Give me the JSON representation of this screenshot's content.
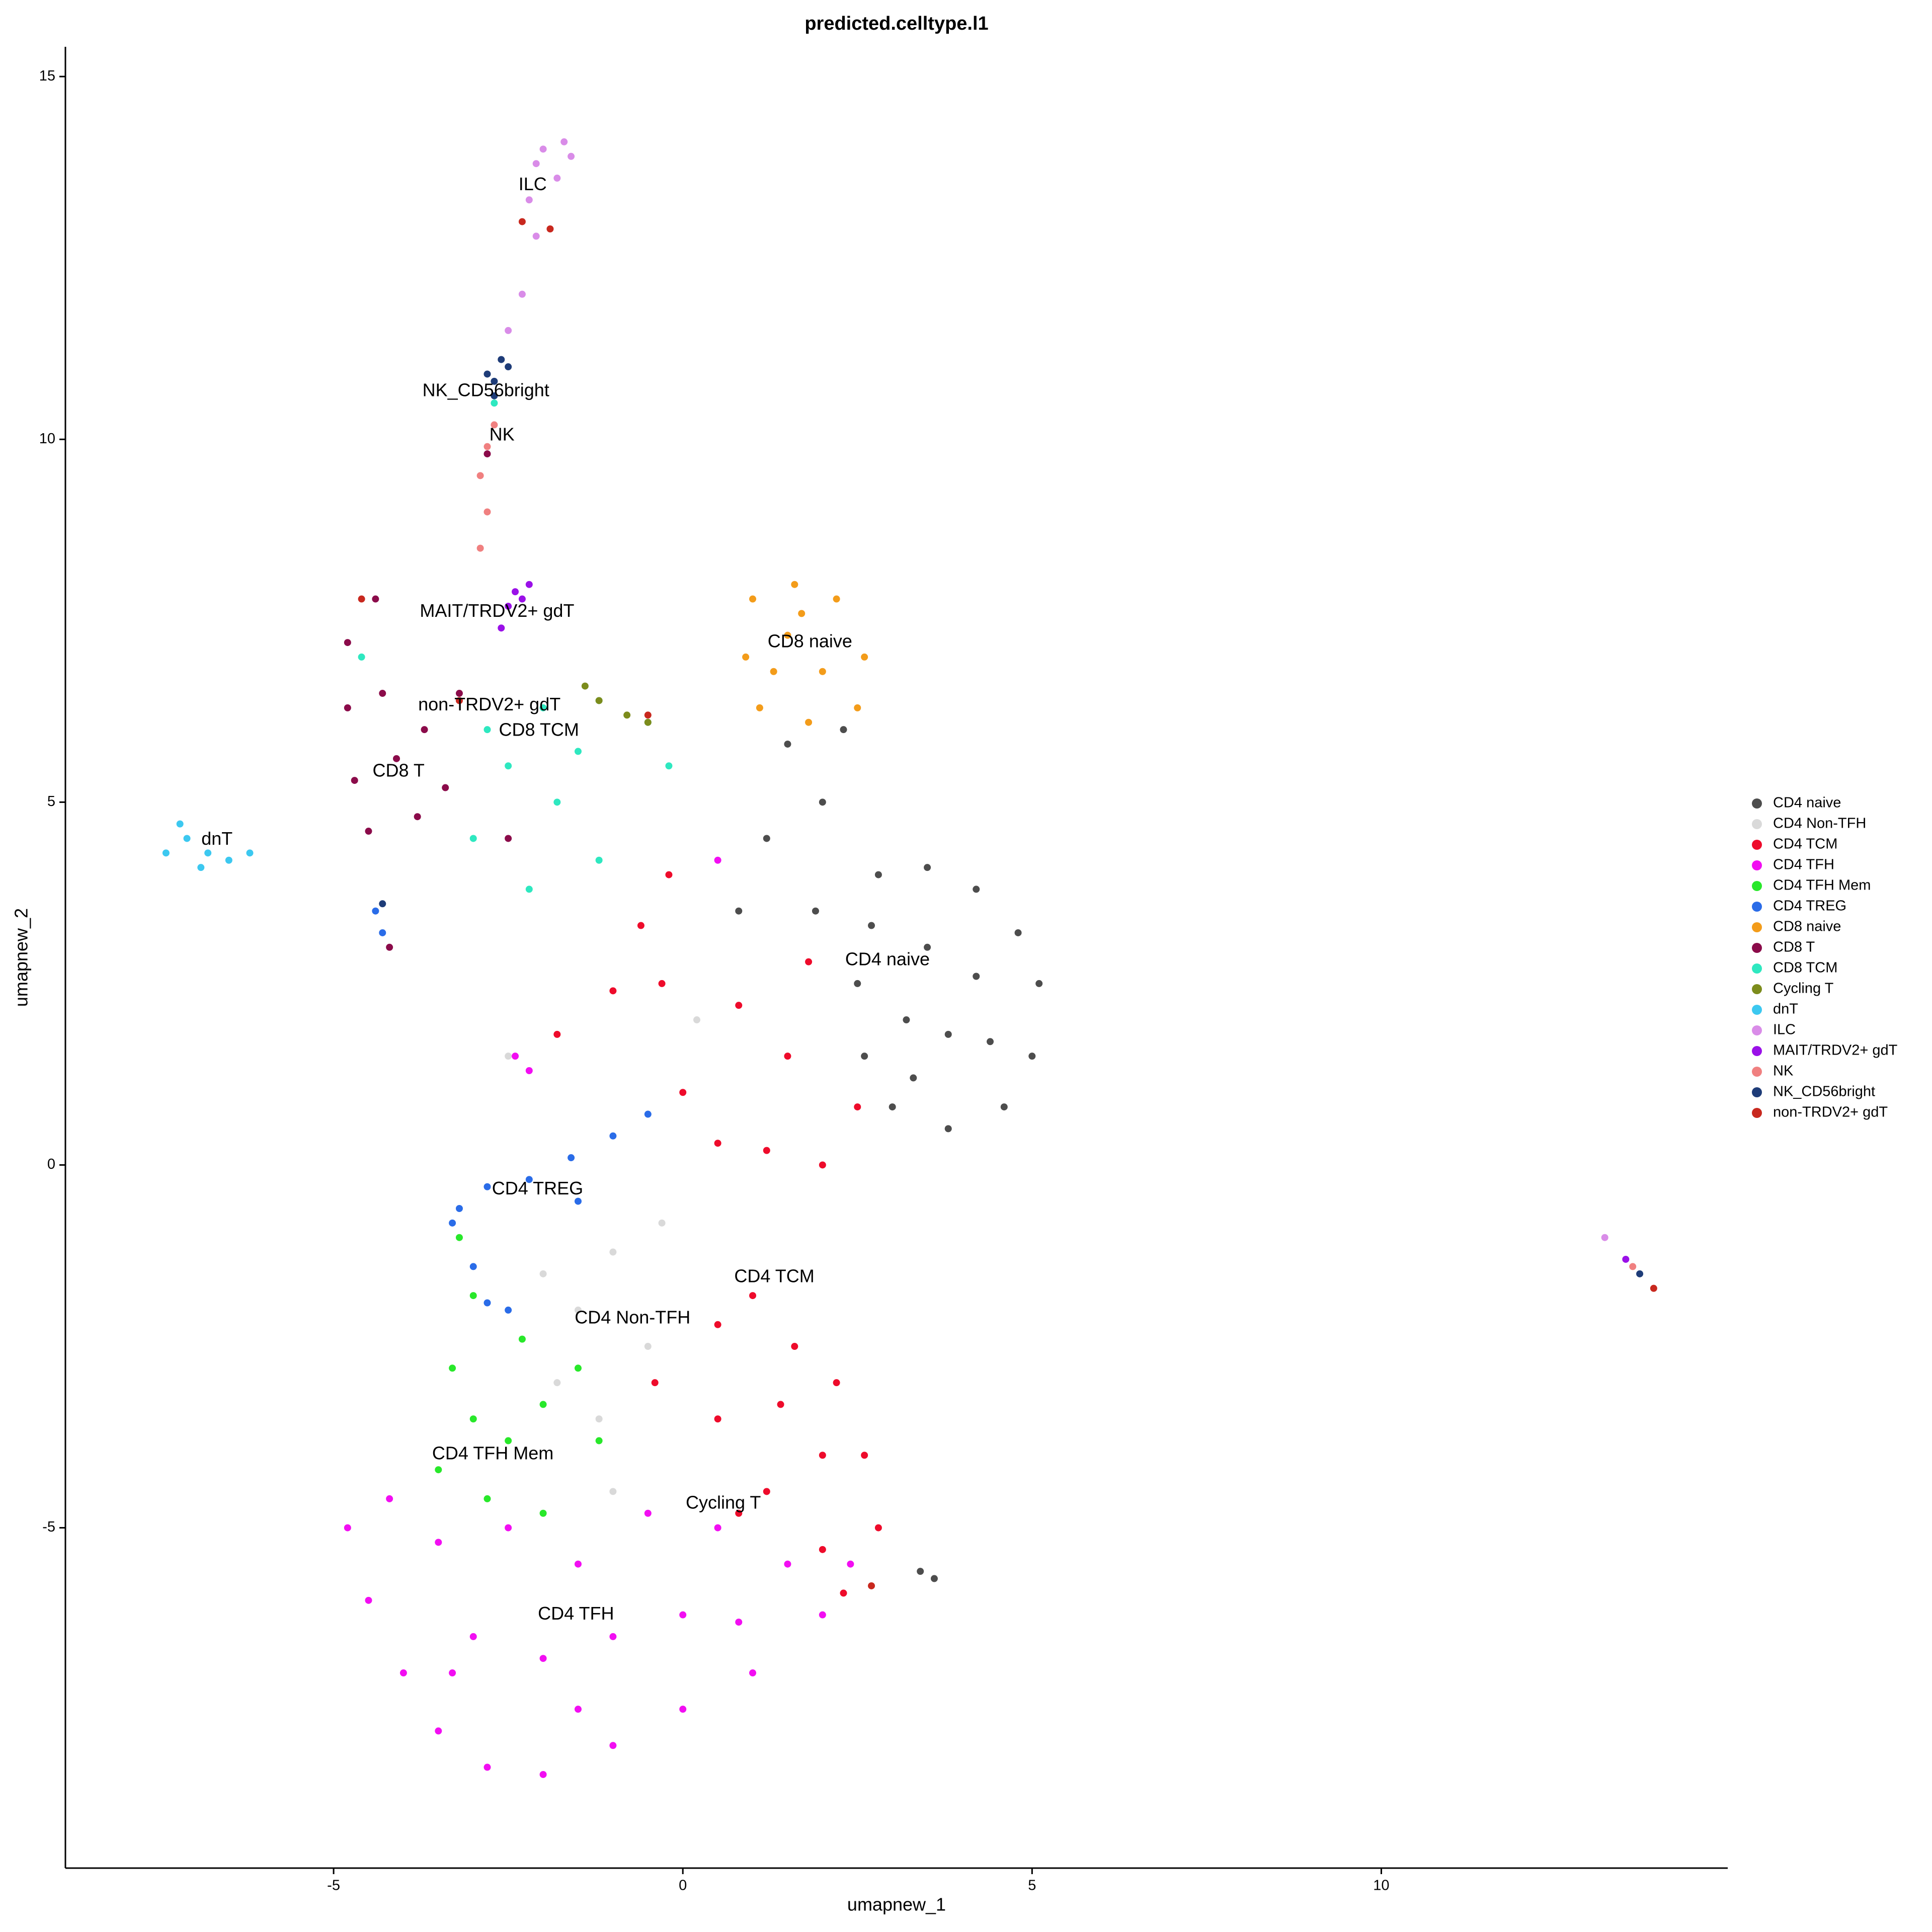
{
  "chart_data": {
    "type": "scatter",
    "title": "predicted.celltype.l1",
    "xlabel": "umapnew_1",
    "ylabel": "umapnew_2",
    "xlim": [
      -8.84,
      14.96
    ],
    "ylim": [
      -9.69,
      15.41
    ],
    "xticks": [
      -5,
      0,
      5,
      10
    ],
    "yticks": [
      -5,
      0,
      5,
      10,
      15
    ],
    "grid": false,
    "legend": "right",
    "series": [
      {
        "name": "CD4 naive",
        "color": "#4d4d4d",
        "x": [
          2.8,
          3.5,
          4.2,
          4.8,
          5.1,
          5,
          4.6,
          3.8,
          3,
          2.6,
          2.5,
          2.7,
          3.5,
          4.2,
          3.8,
          4.4,
          3.2,
          3.3,
          2,
          1.5,
          2.3,
          1.2,
          1.9,
          0.8,
          3.4,
          3.6
        ],
        "y": [
          4,
          4.1,
          3.8,
          3.2,
          2.5,
          1.5,
          0.8,
          0.5,
          0.8,
          1.5,
          2.5,
          3.3,
          3,
          2.6,
          1.8,
          1.7,
          2,
          1.2,
          5,
          5.8,
          6,
          4.5,
          3.5,
          3.5,
          -5.6,
          -5.7
        ]
      },
      {
        "name": "CD4 Non-TFH",
        "color": "#d9d9d9",
        "x": [
          -2,
          -1.5,
          -1,
          -0.5,
          -1.8,
          -1.2,
          -0.3,
          -2.5,
          0.2,
          -1
        ],
        "y": [
          -1.5,
          -2,
          -1.2,
          -2.5,
          -3,
          -3.5,
          -0.8,
          1.5,
          2,
          -4.5
        ]
      },
      {
        "name": "CD4 TCM",
        "color": "#ee0b2b",
        "x": [
          0.5,
          1,
          1.6,
          2.2,
          2.6,
          2.8,
          2,
          1.2,
          0.5,
          -0.4,
          1.4,
          2,
          0.8,
          0.5,
          1.2,
          2,
          2.5,
          1.5,
          0.8,
          -0.3,
          -1,
          -1.8,
          -0.6,
          0,
          -0.2,
          1.8,
          2.3
        ],
        "y": [
          -2.2,
          -1.8,
          -2.5,
          -3,
          -4,
          -5,
          -5.3,
          -4.5,
          -3.5,
          -3,
          -3.3,
          -4,
          -4.8,
          0.3,
          0.2,
          0,
          0.8,
          1.5,
          2.2,
          2.5,
          2.4,
          1.8,
          3.3,
          1,
          4,
          2.8,
          -5.9
        ]
      },
      {
        "name": "CD4 TFH",
        "color": "#f20ef2",
        "x": [
          -4.8,
          -4.5,
          -4,
          -3.5,
          -2.8,
          -2,
          -1,
          0,
          1,
          2,
          2.4,
          1.5,
          0.5,
          -0.5,
          -1.5,
          -2.5,
          -3.5,
          -4.2,
          -3,
          -2,
          -1,
          0,
          -1.5,
          -3.3,
          0.8,
          -2.2,
          -2.4,
          0.5
        ],
        "y": [
          -5,
          -6,
          -7,
          -7.8,
          -8.3,
          -8.4,
          -8,
          -7.5,
          -7,
          -6.2,
          -5.5,
          -5.5,
          -5,
          -4.8,
          -5.5,
          -5,
          -5.2,
          -4.6,
          -6.5,
          -6.8,
          -6.5,
          -6.2,
          -7.5,
          -7,
          -6.3,
          1.3,
          1.5,
          4.2
        ]
      },
      {
        "name": "CD4 TFH Mem",
        "color": "#28e82a",
        "x": [
          -3.2,
          -3,
          -3.3,
          -3,
          -2.5,
          -2,
          -1.5,
          -3.5,
          -2.8,
          -2,
          -2.3,
          -1.2
        ],
        "y": [
          -1,
          -1.8,
          -2.8,
          -3.5,
          -3.8,
          -3.3,
          -2.8,
          -4.2,
          -4.6,
          -4.8,
          -2.4,
          -3.8
        ]
      },
      {
        "name": "CD4 TREG",
        "color": "#2a6ce8",
        "x": [
          -2.8,
          -2.2,
          -1.6,
          -1,
          -0.5,
          -3.3,
          -3,
          -2.8,
          -2.5,
          -3.2,
          -1.5,
          -4.4,
          -4.3
        ],
        "y": [
          -0.3,
          -0.2,
          0.1,
          0.4,
          0.7,
          -0.8,
          -1.4,
          -1.9,
          -2,
          -0.6,
          -0.5,
          3.5,
          3.2
        ]
      },
      {
        "name": "CD8 naive",
        "color": "#f39c1a",
        "x": [
          1,
          1.6,
          2.2,
          2.6,
          2.5,
          1.8,
          1.1,
          0.9,
          1.5,
          2,
          1.7,
          1.3
        ],
        "y": [
          7.8,
          8,
          7.8,
          7,
          6.3,
          6.1,
          6.3,
          7,
          7.3,
          6.8,
          7.6,
          6.8
        ]
      },
      {
        "name": "CD8 T",
        "color": "#8b0b4a",
        "x": [
          -4.8,
          -4.3,
          -3.7,
          -3.4,
          -3.8,
          -4.5,
          -4.7,
          -4.1,
          -4.4,
          -4.8,
          -3.2,
          -2.5,
          -4.2,
          -2.8
        ],
        "y": [
          6.3,
          6.5,
          6,
          5.2,
          4.8,
          4.6,
          5.3,
          5.6,
          7.8,
          7.2,
          6.5,
          4.5,
          3,
          9.8
        ]
      },
      {
        "name": "CD8 TCM",
        "color": "#2ee8c0",
        "x": [
          -2.8,
          -2,
          -1.2,
          -0.5,
          -2.5,
          -1.8,
          -1.2,
          -3,
          -2.2,
          -1.5,
          -0.2,
          -4.6,
          -2.7
        ],
        "y": [
          6,
          6.3,
          6.4,
          6.1,
          5.5,
          5,
          4.2,
          4.5,
          3.8,
          5.7,
          5.5,
          7,
          10.5
        ]
      },
      {
        "name": "Cycling T",
        "color": "#7c8c1c",
        "x": [
          -1.2,
          -0.8,
          -0.5,
          -1.4
        ],
        "y": [
          6.4,
          6.2,
          6.1,
          6.6
        ]
      },
      {
        "name": "dnT",
        "color": "#3cc8f0",
        "x": [
          -7.4,
          -7.1,
          -6.8,
          -6.5,
          -6.2,
          -7.2,
          -6.9
        ],
        "y": [
          4.3,
          4.5,
          4.3,
          4.2,
          4.3,
          4.7,
          4.1
        ]
      },
      {
        "name": "ILC",
        "color": "#d98ce8",
        "x": [
          -2,
          -1.7,
          -2.1,
          -1.8,
          -2.2,
          -2.1,
          -2.3,
          -2.5,
          13.2,
          -1.6
        ],
        "y": [
          14,
          14.1,
          13.8,
          13.6,
          13.3,
          12.8,
          12,
          11.5,
          -1,
          13.9
        ]
      },
      {
        "name": "MAIT/TRDV2+ gdT",
        "color": "#9a10e8",
        "x": [
          -2.4,
          -2.5,
          -2.3,
          -2.6,
          -2.2,
          13.5
        ],
        "y": [
          7.9,
          7.7,
          7.8,
          7.4,
          8,
          -1.3
        ]
      },
      {
        "name": "NK",
        "color": "#f08080",
        "x": [
          -2.8,
          -2.9,
          -2.8,
          -2.9,
          -2.7,
          13.6
        ],
        "y": [
          9.9,
          9.5,
          9,
          8.5,
          10.2,
          -1.4
        ]
      },
      {
        "name": "NK_CD56bright",
        "color": "#1e3c78",
        "x": [
          -2.6,
          -2.7,
          -2.5,
          -2.8,
          -4.3,
          -2.7,
          13.7
        ],
        "y": [
          11.1,
          10.8,
          11,
          10.9,
          3.6,
          10.6,
          -1.5
        ]
      },
      {
        "name": "non-TRDV2+ gdT",
        "color": "#c8281e",
        "x": [
          -0.5,
          -3.2,
          -2.3,
          -1.9,
          13.9,
          2.7,
          -4.6
        ],
        "y": [
          6.2,
          6.4,
          13,
          12.9,
          -1.7,
          -5.8,
          7.8
        ]
      }
    ],
    "labels": [
      {
        "text": "ILC",
        "x": -2.15,
        "y": 13.5
      },
      {
        "text": "NK_CD56bright",
        "x": -2.82,
        "y": 10.66
      },
      {
        "text": "NK",
        "x": -2.59,
        "y": 10.05
      },
      {
        "text": "MAIT/TRDV2+ gdT",
        "x": -2.66,
        "y": 7.62
      },
      {
        "text": "CD8 naive",
        "x": 1.82,
        "y": 7.2
      },
      {
        "text": "non-TRDV2+ gdT",
        "x": -2.77,
        "y": 6.33
      },
      {
        "text": "CD8 TCM",
        "x": -2.06,
        "y": 5.98
      },
      {
        "text": "CD8 T",
        "x": -4.07,
        "y": 5.42
      },
      {
        "text": "dnT",
        "x": -6.67,
        "y": 4.48
      },
      {
        "text": "CD4 naive",
        "x": 2.93,
        "y": 2.82
      },
      {
        "text": "CD4 TREG",
        "x": -2.08,
        "y": -0.34
      },
      {
        "text": "CD4 TCM",
        "x": 1.31,
        "y": -1.55
      },
      {
        "text": "CD4 Non-TFH",
        "x": -0.72,
        "y": -2.12
      },
      {
        "text": "CD4 TFH Mem",
        "x": -2.72,
        "y": -3.99
      },
      {
        "text": "Cycling T",
        "x": 0.58,
        "y": -4.67
      },
      {
        "text": "CD4 TFH",
        "x": -1.53,
        "y": -6.2
      }
    ]
  }
}
